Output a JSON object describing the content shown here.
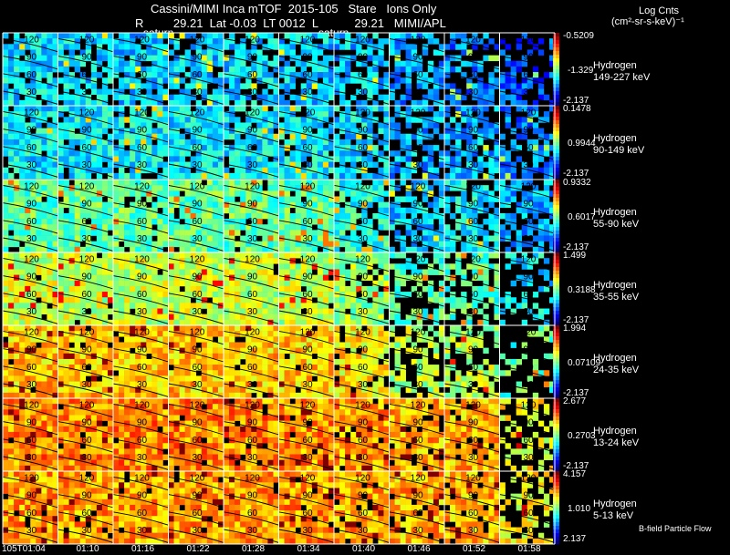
{
  "header": {
    "title": "Cassini/MIMI Inca mTOF  2015-105   Stare   Ions Only",
    "subtitle": "R         29.21  Lat -0.03  LT 0012  L           29.21   MIMI/APL",
    "scale_label": "Log Cnts",
    "unit_label": "(cm²-sr-s-keV)⁻¹",
    "planet_labels": [
      "saturn",
      "saturn"
    ]
  },
  "footer": {
    "note": "B-field Particle Flow"
  },
  "chart_data": {
    "type": "heatmap",
    "time_labels": [
      "105T01:04",
      "01:10",
      "01:16",
      "01:22",
      "01:28",
      "01:34",
      "01:40",
      "01:46",
      "01:52",
      "01:58"
    ],
    "grid_labels": [
      "120",
      "90",
      "60",
      "30"
    ],
    "rows": [
      {
        "species": "Hydrogen",
        "energy": "149-227 keV",
        "cmax": "-0.5209",
        "cmid": "-1.329",
        "cmin": "-2.137",
        "level": [
          0.35,
          0.35,
          0.33,
          0.33,
          0.34,
          0.33,
          0.32,
          0.28,
          0.25,
          0.2
        ],
        "fill": [
          0.82,
          0.8,
          0.8,
          0.8,
          0.78,
          0.78,
          0.72,
          0.66,
          0.6,
          0.45
        ]
      },
      {
        "species": "Hydrogen",
        "energy": "90-149 keV",
        "cmax": "0.1478",
        "cmid": "0.9944",
        "cmin": "-2.137",
        "level": [
          0.36,
          0.37,
          0.37,
          0.36,
          0.36,
          0.36,
          0.35,
          0.3,
          0.3,
          0.25
        ],
        "fill": [
          0.92,
          0.9,
          0.9,
          0.9,
          0.9,
          0.88,
          0.8,
          0.7,
          0.72,
          0.55
        ]
      },
      {
        "species": "Hydrogen",
        "energy": "55-90 keV",
        "cmax": "0.9332",
        "cmid": "0.6017",
        "cmin": "-2.137",
        "level": [
          0.47,
          0.47,
          0.47,
          0.47,
          0.47,
          0.46,
          0.4,
          0.33,
          0.36,
          0.3
        ],
        "fill": [
          0.95,
          0.95,
          0.95,
          0.95,
          0.95,
          0.93,
          0.85,
          0.7,
          0.75,
          0.6
        ]
      },
      {
        "species": "Hydrogen",
        "energy": "35-55 keV",
        "cmax": "1.499",
        "cmid": "0.3188",
        "cmin": "-2.137",
        "level": [
          0.58,
          0.57,
          0.57,
          0.57,
          0.57,
          0.56,
          0.52,
          0.45,
          0.45,
          0.35
        ],
        "fill": [
          0.96,
          0.96,
          0.96,
          0.96,
          0.96,
          0.95,
          0.88,
          0.6,
          0.62,
          0.35
        ]
      },
      {
        "species": "Hydrogen",
        "energy": "24-35 keV",
        "cmax": "1.994",
        "cmid": "0.07109",
        "cmin": "-2.137",
        "level": [
          0.68,
          0.68,
          0.68,
          0.68,
          0.68,
          0.67,
          0.64,
          0.55,
          0.55,
          0.45
        ],
        "fill": [
          0.96,
          0.96,
          0.96,
          0.96,
          0.96,
          0.95,
          0.9,
          0.55,
          0.6,
          0.3
        ]
      },
      {
        "species": "Hydrogen",
        "energy": "13-24 keV",
        "cmax": "2.677",
        "cmid": "0.2703",
        "cmin": "-2.137",
        "level": [
          0.74,
          0.74,
          0.74,
          0.74,
          0.74,
          0.73,
          0.72,
          0.7,
          0.7,
          0.62
        ],
        "fill": [
          0.97,
          0.97,
          0.97,
          0.97,
          0.96,
          0.95,
          0.93,
          0.88,
          0.88,
          0.4
        ]
      },
      {
        "species": "Hydrogen",
        "energy": "5-13 keV",
        "cmax": "4.157",
        "cmid": "1.010",
        "cmin": "2.137",
        "level": [
          0.72,
          0.72,
          0.72,
          0.72,
          0.72,
          0.72,
          0.71,
          0.7,
          0.7,
          0.62
        ],
        "fill": [
          0.95,
          0.95,
          0.95,
          0.95,
          0.95,
          0.94,
          0.92,
          0.88,
          0.86,
          0.45
        ]
      }
    ]
  }
}
